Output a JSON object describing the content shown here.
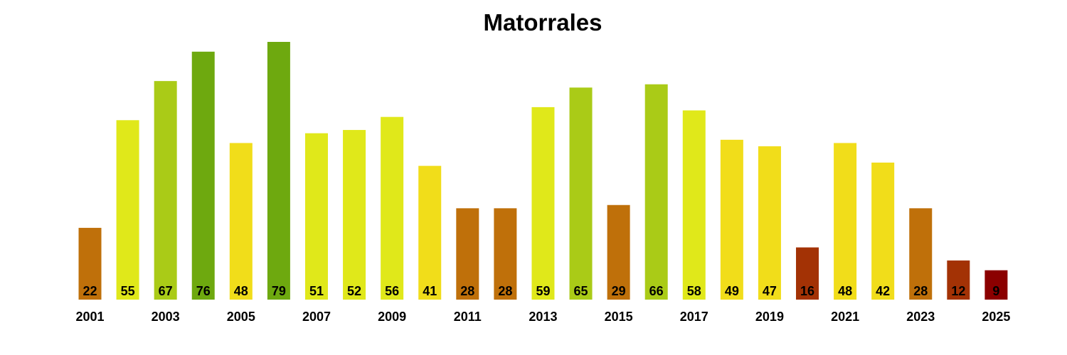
{
  "chart_data": {
    "type": "bar",
    "title": "Matorrales",
    "xlabel": "",
    "ylabel": "",
    "categories": [
      "2001",
      "2002",
      "2003",
      "2004",
      "2005",
      "2006",
      "2007",
      "2008",
      "2009",
      "2010",
      "2011",
      "2012",
      "2013",
      "2014",
      "2015",
      "2016",
      "2017",
      "2018",
      "2019",
      "2020",
      "2021",
      "2022",
      "2023",
      "2024",
      "2025"
    ],
    "tick_labels": [
      "2001",
      "2003",
      "2005",
      "2007",
      "2009",
      "2011",
      "2013",
      "2015",
      "2017",
      "2019",
      "2021",
      "2023",
      "2025"
    ],
    "values": [
      22,
      55,
      67,
      76,
      48,
      79,
      51,
      52,
      56,
      41,
      28,
      28,
      59,
      65,
      29,
      66,
      58,
      49,
      47,
      16,
      48,
      42,
      28,
      12,
      9
    ],
    "colors": [
      "#BF700A",
      "#E0E81A",
      "#AACB17",
      "#6EA90F",
      "#F1DD1A",
      "#6EA90F",
      "#E0E81A",
      "#E0E81A",
      "#E0E81A",
      "#F1DD1A",
      "#BF700A",
      "#BF700A",
      "#E0E81A",
      "#AACB17",
      "#BF700A",
      "#AACB17",
      "#E0E81A",
      "#F1DD1A",
      "#F1DD1A",
      "#A33205",
      "#F1DD1A",
      "#F1DD1A",
      "#BF700A",
      "#A33205",
      "#8B0000"
    ],
    "ylim": [
      0,
      79
    ],
    "grid": false,
    "legend": "none"
  }
}
